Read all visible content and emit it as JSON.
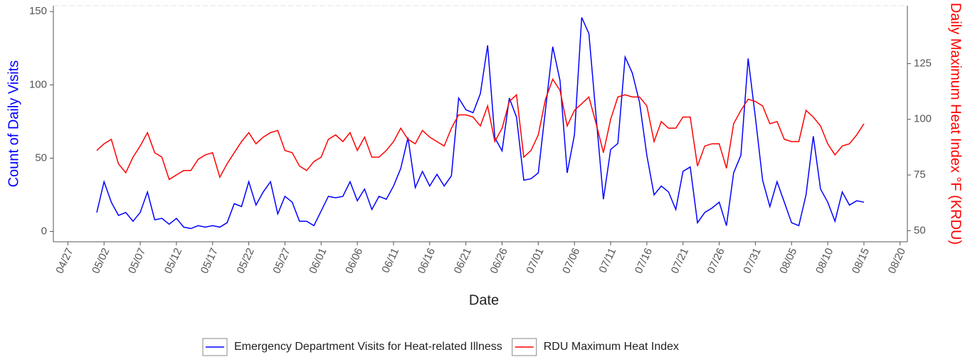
{
  "chart_data": {
    "type": "line",
    "x_label": "Date",
    "y_label": "Count of Daily Visits",
    "y2_label": "Daily Maximum Heat Index °F (KRDU)",
    "x": [
      "05/01",
      "05/02",
      "05/03",
      "05/04",
      "05/05",
      "05/06",
      "05/07",
      "05/08",
      "05/09",
      "05/10",
      "05/11",
      "05/12",
      "05/13",
      "05/14",
      "05/15",
      "05/16",
      "05/17",
      "05/18",
      "05/19",
      "05/20",
      "05/21",
      "05/22",
      "05/23",
      "05/24",
      "05/25",
      "05/26",
      "05/27",
      "05/28",
      "05/29",
      "05/30",
      "05/31",
      "06/01",
      "06/02",
      "06/03",
      "06/04",
      "06/05",
      "06/06",
      "06/07",
      "06/08",
      "06/09",
      "06/10",
      "06/11",
      "06/12",
      "06/13",
      "06/14",
      "06/15",
      "06/16",
      "06/17",
      "06/18",
      "06/19",
      "06/20",
      "06/21",
      "06/22",
      "06/23",
      "06/24",
      "06/25",
      "06/26",
      "06/27",
      "06/28",
      "06/29",
      "06/30",
      "07/01",
      "07/02",
      "07/03",
      "07/04",
      "07/05",
      "07/06",
      "07/07",
      "07/08",
      "07/09",
      "07/10",
      "07/11",
      "07/12",
      "07/13",
      "07/14",
      "07/15",
      "07/16",
      "07/17",
      "07/18",
      "07/19",
      "07/20",
      "07/21",
      "07/22",
      "07/23",
      "07/24",
      "07/25",
      "07/26",
      "07/27",
      "07/28",
      "07/29",
      "07/30",
      "07/31",
      "08/01",
      "08/02",
      "08/03",
      "08/04",
      "08/05",
      "08/06",
      "08/07",
      "08/08",
      "08/09",
      "08/10",
      "08/11",
      "08/12",
      "08/13",
      "08/14",
      "08/15"
    ],
    "xlim": [
      "04/25",
      "08/21"
    ],
    "xticks": [
      "04/27",
      "05/02",
      "05/07",
      "05/12",
      "05/17",
      "05/22",
      "05/27",
      "06/01",
      "06/06",
      "06/11",
      "06/16",
      "06/21",
      "06/26",
      "07/01",
      "07/06",
      "07/11",
      "07/16",
      "07/21",
      "07/26",
      "07/31",
      "08/05",
      "08/10",
      "08/15",
      "08/20"
    ],
    "ylim": [
      -7,
      154
    ],
    "yticks": [
      0,
      50,
      100,
      150
    ],
    "y2lim": [
      45,
      151
    ],
    "y2ticks": [
      50,
      75,
      100,
      125
    ],
    "series": [
      {
        "name": "Emergency Department Visits for Heat-related Illness",
        "color": "#0000ff",
        "values": [
          13,
          34,
          20,
          11,
          13,
          7,
          13,
          27,
          8,
          9,
          5,
          9,
          3,
          2,
          4,
          3,
          4,
          3,
          6,
          19,
          17,
          34,
          18,
          27,
          34,
          12,
          24,
          20,
          7,
          7,
          4,
          14,
          24,
          23,
          24,
          34,
          21,
          29,
          15,
          24,
          22,
          31,
          43,
          64,
          30,
          41,
          31,
          39,
          31,
          38,
          91,
          83,
          81,
          94,
          127,
          64,
          55,
          91,
          78,
          35,
          36,
          40,
          83,
          126,
          103,
          40,
          66,
          146,
          135,
          78,
          22,
          56,
          60,
          119,
          108,
          88,
          52,
          25,
          31,
          27,
          15,
          41,
          44,
          6,
          13,
          16,
          20,
          4,
          40,
          52,
          118,
          78,
          35,
          17,
          34,
          20,
          6,
          4,
          25,
          65,
          29,
          20,
          7,
          27,
          18,
          21,
          20
        ]
      },
      {
        "name": "RDU Maximum Heat Index",
        "color": "#ff0000",
        "axis": "y2",
        "values": [
          86,
          89,
          91,
          80,
          76,
          83,
          88,
          94,
          85,
          83,
          73,
          75,
          77,
          77,
          82,
          84,
          85,
          74,
          80,
          85,
          90,
          94,
          89,
          92,
          94,
          95,
          86,
          85,
          79,
          77,
          81,
          83,
          91,
          93,
          90,
          94,
          86,
          92,
          83,
          83,
          86,
          90,
          96,
          91,
          89,
          95,
          92,
          90,
          88,
          96,
          102,
          102,
          101,
          97,
          106,
          90,
          96,
          108,
          111,
          83,
          86,
          93,
          109,
          118,
          113,
          97,
          104,
          107,
          110,
          98,
          85,
          100,
          110,
          111,
          110,
          110,
          106,
          90,
          99,
          96,
          96,
          101,
          101,
          79,
          88,
          89,
          89,
          78,
          98,
          104,
          109,
          108,
          106,
          98,
          99,
          91,
          90,
          90,
          104,
          101,
          97,
          89,
          84,
          88,
          89,
          93,
          98
        ]
      }
    ]
  }
}
